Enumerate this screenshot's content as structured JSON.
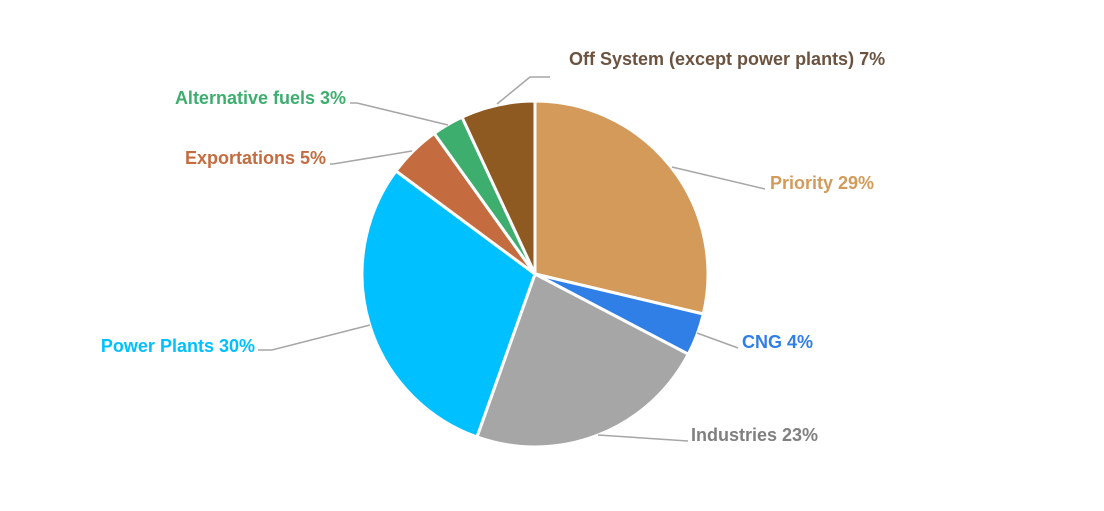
{
  "chart_data": {
    "type": "pie",
    "title": "",
    "slices": [
      {
        "name": "Priority",
        "value": 29,
        "label": "Priority 29%",
        "color": "#D39A5A",
        "label_color": "#D39A5A"
      },
      {
        "name": "CNG",
        "value": 4,
        "label": "CNG 4%",
        "color": "#2F7FE6",
        "label_color": "#2F7FE6"
      },
      {
        "name": "Industries",
        "value": 23,
        "label": "Industries 23%",
        "color": "#A6A6A6",
        "label_color": "#808080"
      },
      {
        "name": "Power Plants",
        "value": 30,
        "label": "Power Plants 30%",
        "color": "#00C0FF",
        "label_color": "#00C0FF"
      },
      {
        "name": "Exportations",
        "value": 5,
        "label": "Exportations 5%",
        "color": "#C46C40",
        "label_color": "#C46C40"
      },
      {
        "name": "Alternative fuels",
        "value": 3,
        "label": "Alternative fuels 3%",
        "color": "#3DAE6E",
        "label_color": "#3DAE6E"
      },
      {
        "name": "Off System (except power plants)",
        "value": 7,
        "label": "Off System (except power plants) 7%",
        "color": "#8E5A22",
        "label_color": "#6B5340"
      }
    ],
    "start_angle_deg": 0,
    "direction": "clockwise",
    "legend": "none"
  }
}
